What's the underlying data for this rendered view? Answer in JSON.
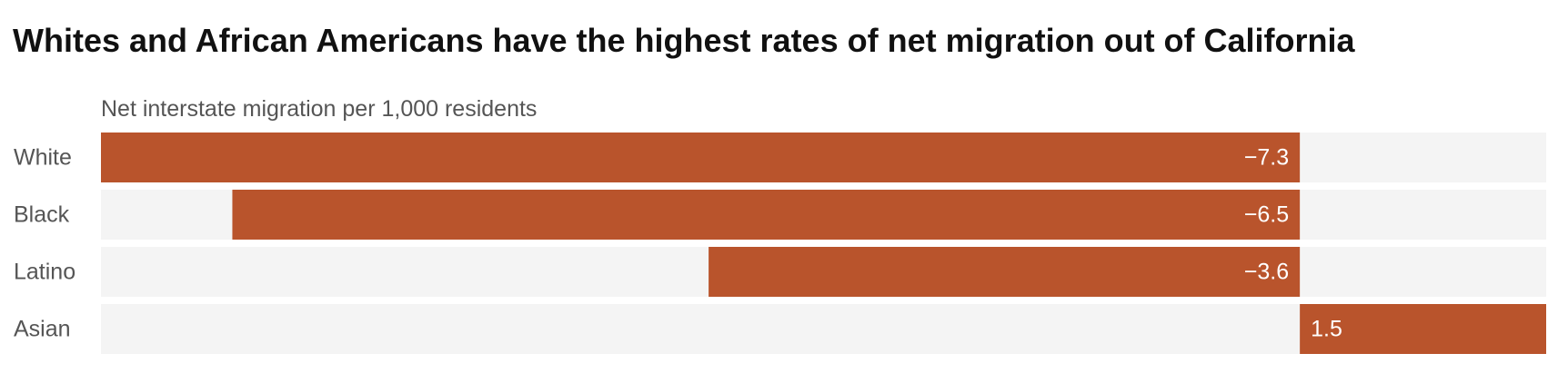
{
  "chart_data": {
    "type": "bar",
    "orientation": "horizontal",
    "title": "Whites and African Americans have the highest rates of net migration out of California",
    "axis_label": "Net interstate migration per 1,000 residents",
    "categories": [
      "White",
      "Black",
      "Latino",
      "Asian"
    ],
    "values": [
      -7.3,
      -6.5,
      -3.6,
      1.5
    ],
    "value_labels": [
      "−7.3",
      "−6.5",
      "−3.6",
      "1.5"
    ],
    "xlim": [
      -7.3,
      1.5
    ],
    "grid": false,
    "legend": "none"
  },
  "colors": {
    "bar": "#b9542c",
    "track": "#f4f4f4",
    "title": "#111111",
    "category_text": "#555555",
    "value_text": "#ffffff"
  }
}
